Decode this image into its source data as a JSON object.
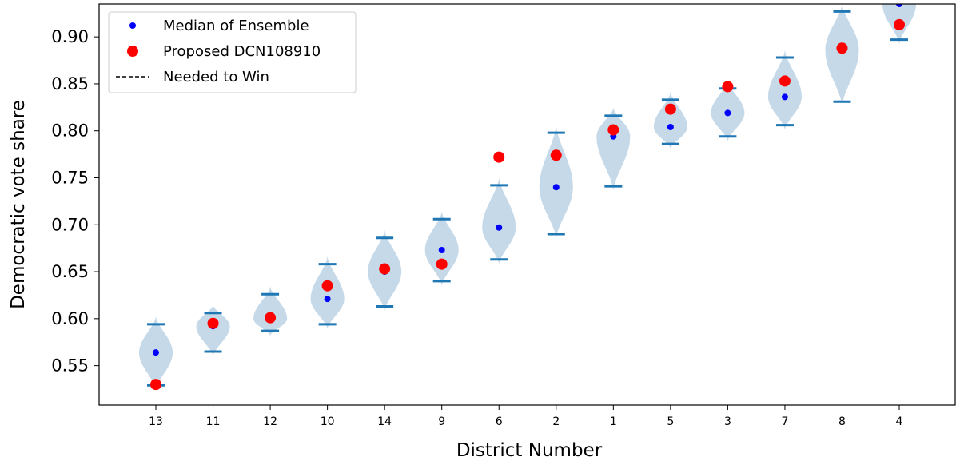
{
  "chart_data": {
    "type": "violin",
    "xlabel": "District Number",
    "ylabel": "Democratic vote share",
    "ylim": [
      0.508,
      0.935
    ],
    "yticks": [
      0.55,
      0.6,
      0.65,
      0.7,
      0.75,
      0.8,
      0.85,
      0.9
    ],
    "ytick_labels": [
      "0.55",
      "0.60",
      "0.65",
      "0.70",
      "0.75",
      "0.80",
      "0.85",
      "0.90"
    ],
    "categories": [
      "13",
      "11",
      "12",
      "10",
      "14",
      "9",
      "6",
      "2",
      "1",
      "5",
      "3",
      "7",
      "8",
      "4"
    ],
    "ensemble_min": [
      0.529,
      0.565,
      0.587,
      0.594,
      0.613,
      0.64,
      0.663,
      0.69,
      0.741,
      0.786,
      0.794,
      0.806,
      0.831,
      0.897
    ],
    "ensemble_max": [
      0.594,
      0.606,
      0.626,
      0.658,
      0.686,
      0.706,
      0.742,
      0.798,
      0.816,
      0.833,
      0.845,
      0.878,
      0.927,
      0.945
    ],
    "ensemble_median": [
      0.564,
      0.592,
      0.6,
      0.621,
      0.65,
      0.673,
      0.697,
      0.74,
      0.794,
      0.804,
      0.819,
      0.836,
      0.886,
      0.935
    ],
    "proposed": [
      0.53,
      0.595,
      0.601,
      0.635,
      0.653,
      0.658,
      0.772,
      0.774,
      0.801,
      0.823,
      0.847,
      0.853,
      0.888,
      0.913
    ],
    "legend": {
      "placement": "upper-left",
      "entries": [
        "Median of Ensemble",
        "Proposed DCN108910",
        "Needed to Win"
      ]
    },
    "colors": {
      "violin_fill": "#c2d7e8",
      "extrema_line": "#1f77b4",
      "median_marker": "#0000ff",
      "proposed_marker": "#ff0000",
      "needed_line": "#000000"
    }
  }
}
